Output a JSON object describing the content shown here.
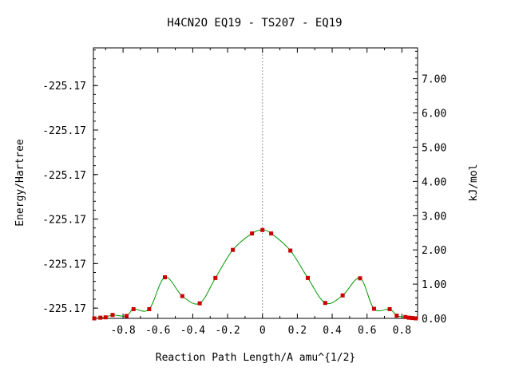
{
  "chart_data": {
    "type": "line",
    "title": "H4CN2O   EQ19 - TS207 - EQ19",
    "xlabel": "Reaction Path Length/A amu^{1/2}",
    "ylabel_left": "Energy/Hartree",
    "ylabel_right": "kJ/mol",
    "xlim": [
      -0.97,
      0.89
    ],
    "ylim_right": [
      0.0,
      7.9
    ],
    "x_ticks": [
      -0.8,
      -0.6,
      -0.4,
      -0.2,
      0,
      0.2,
      0.4,
      0.6,
      0.8
    ],
    "x_tick_labels": [
      "-0.8",
      "-0.6",
      "-0.4",
      "-0.2",
      "0",
      "0.2",
      "0.4",
      "0.6",
      "0.8"
    ],
    "left_ticks": [
      0.3,
      1.6,
      2.9,
      4.2,
      5.5,
      6.8
    ],
    "left_tick_labels": [
      "-225.17",
      "-225.17",
      "-225.17",
      "-225.17",
      "-225.17",
      "-225.17"
    ],
    "right_ticks": [
      0,
      1,
      2,
      3,
      4,
      5,
      6,
      7
    ],
    "right_tick_labels": [
      "0.00",
      "1.00",
      "2.00",
      "3.00",
      "4.00",
      "5.00",
      "6.00",
      "7.00"
    ],
    "ts_line_x": 0,
    "series": [
      {
        "color": "#009900",
        "marker_color": "#cc0000",
        "x": [
          -0.965,
          -0.93,
          -0.9,
          -0.86,
          -0.78,
          -0.74,
          -0.65,
          -0.56,
          -0.46,
          -0.36,
          -0.27,
          -0.17,
          -0.06,
          0.0,
          0.05,
          0.16,
          0.26,
          0.36,
          0.46,
          0.56,
          0.64,
          0.73,
          0.77,
          0.82,
          0.84,
          0.86,
          0.88
        ],
        "y": [
          0.0,
          0.02,
          0.03,
          0.1,
          0.07,
          0.27,
          0.27,
          1.2,
          0.65,
          0.44,
          1.18,
          2.0,
          2.48,
          2.58,
          2.48,
          1.98,
          1.18,
          0.45,
          0.67,
          1.17,
          0.28,
          0.27,
          0.08,
          0.04,
          0.02,
          0.01,
          0.0
        ]
      }
    ]
  }
}
